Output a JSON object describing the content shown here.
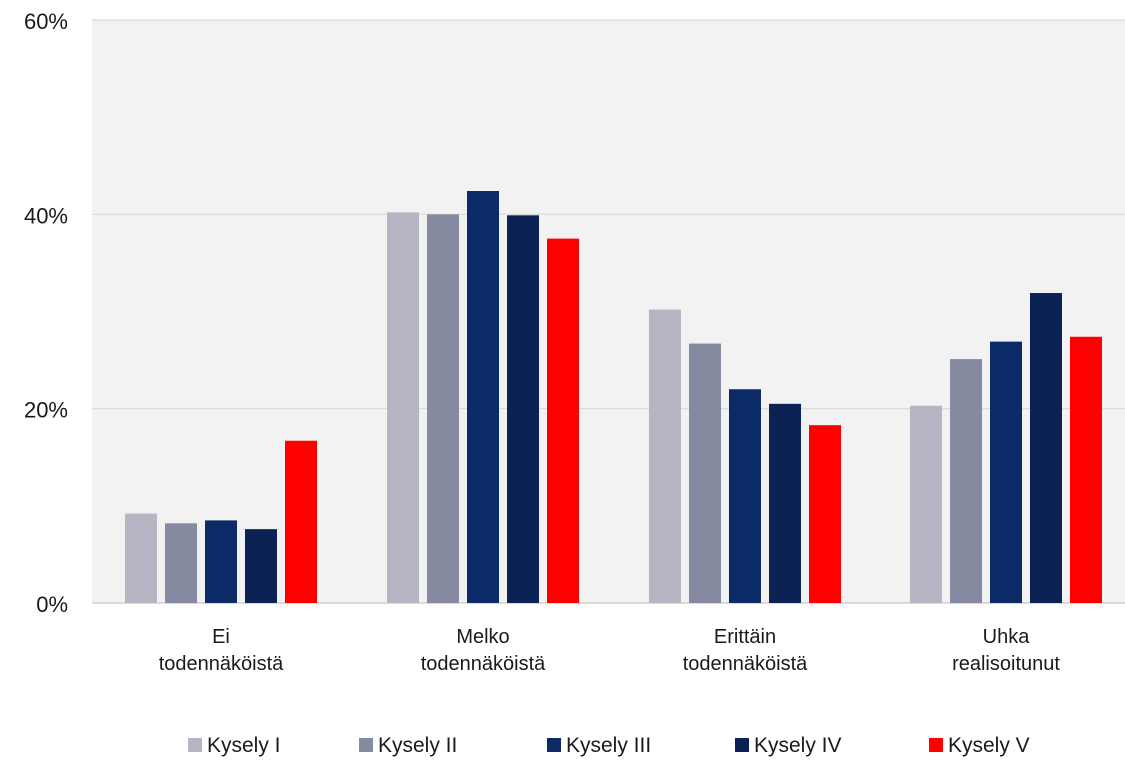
{
  "chart_data": {
    "type": "bar",
    "categories": [
      [
        "Ei",
        "todennäköistä"
      ],
      [
        "Melko",
        "todennäköistä"
      ],
      [
        "Erittäin",
        "todennäköistä"
      ],
      [
        "Uhka",
        "realisoitunut"
      ]
    ],
    "series": [
      {
        "name": "Kysely I",
        "color": "#b5b5c3",
        "values": [
          9.2,
          40.2,
          30.2,
          20.3
        ]
      },
      {
        "name": "Kysely II",
        "color": "#868aa0",
        "values": [
          8.2,
          40.0,
          26.7,
          25.1
        ]
      },
      {
        "name": "Kysely III",
        "color": "#0c2a66",
        "values": [
          8.5,
          42.4,
          22.0,
          26.9
        ]
      },
      {
        "name": "Kysely IV",
        "color": "#0d2254",
        "values": [
          7.6,
          39.9,
          20.5,
          31.9
        ]
      },
      {
        "name": "Kysely V",
        "color": "#ff0000",
        "values": [
          16.7,
          37.5,
          18.3,
          27.4
        ]
      }
    ],
    "y_ticks": [
      "0%",
      "20%",
      "40%",
      "60%"
    ],
    "ylim": [
      0,
      60
    ],
    "grid": true,
    "plot_background": "#f2f2f2",
    "legend_position": "bottom"
  }
}
